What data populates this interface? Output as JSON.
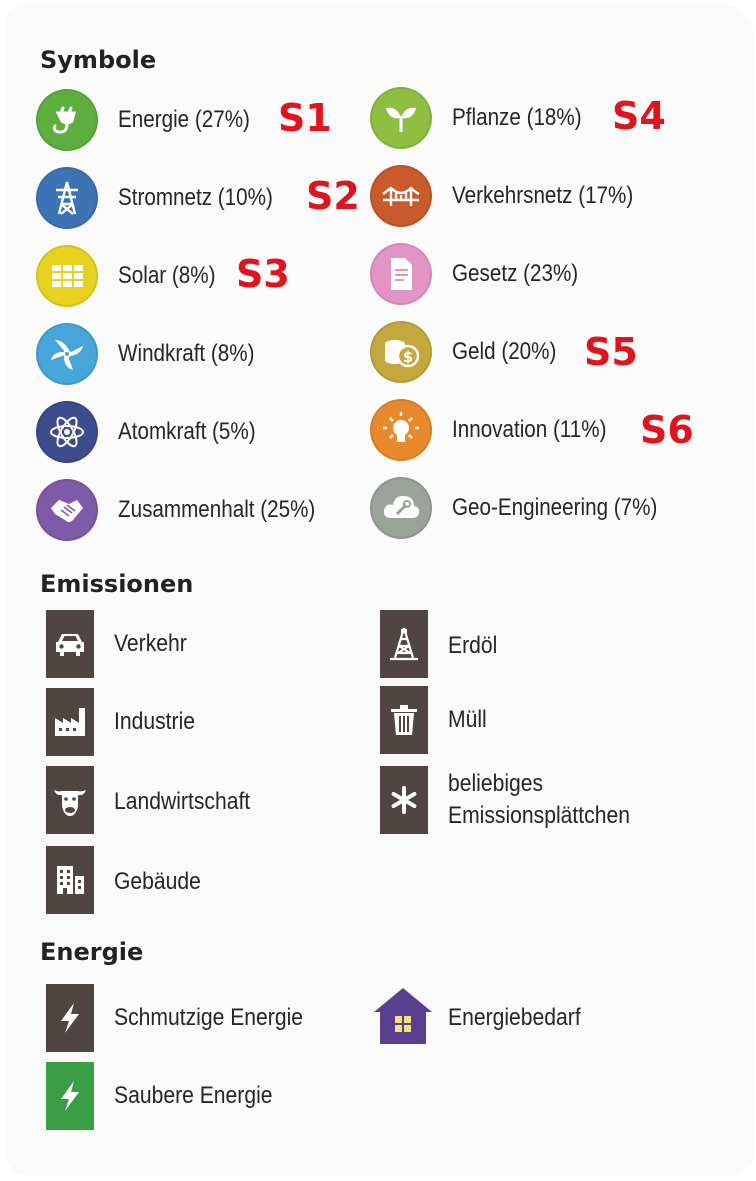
{
  "sections": {
    "symbols": "Symbole",
    "emissions": "Emissionen",
    "energy": "Energie"
  },
  "symbols_left": [
    {
      "label": "Energie (27%)",
      "icon": "plug-icon",
      "color": "#5dae3f",
      "tag": "S1"
    },
    {
      "label": "Stromnetz (10%)",
      "icon": "power-pylon-icon",
      "color": "#3d73b5",
      "tag": "S2"
    },
    {
      "label": "Solar (8%)",
      "icon": "solar-panel-icon",
      "color": "#e8d21e",
      "tag": "S3"
    },
    {
      "label": "Windkraft (8%)",
      "icon": "wind-turbine-icon",
      "color": "#46a5d9",
      "tag": ""
    },
    {
      "label": "Atomkraft (5%)",
      "icon": "atom-icon",
      "color": "#3c4c8c",
      "tag": ""
    },
    {
      "label": "Zusammenhalt (25%)",
      "icon": "handshake-icon",
      "color": "#7f5aa8",
      "tag": ""
    }
  ],
  "symbols_right": [
    {
      "label": "Pflanze (18%)",
      "icon": "sprout-icon",
      "color": "#8ebf43",
      "tag": "S4"
    },
    {
      "label": "Verkehrsnetz (17%)",
      "icon": "bridge-icon",
      "color": "#c95a2c",
      "tag": ""
    },
    {
      "label": "Gesetz (23%)",
      "icon": "document-icon",
      "color": "#e295c5",
      "tag": ""
    },
    {
      "label": "Geld (20%)",
      "icon": "coins-icon",
      "color": "#c2a83d",
      "tag": "S5"
    },
    {
      "label": "Innovation (11%)",
      "icon": "lightbulb-icon",
      "color": "#e8892d",
      "tag": "S6"
    },
    {
      "label": "Geo-Engineering (7%)",
      "icon": "cloud-wrench-icon",
      "color": "#9aa29a",
      "tag": ""
    }
  ],
  "emissions_left": [
    {
      "label": "Verkehr",
      "icon": "car-icon"
    },
    {
      "label": "Industrie",
      "icon": "factory-icon"
    },
    {
      "label": "Landwirtschaft",
      "icon": "cow-icon"
    },
    {
      "label": "Gebäude",
      "icon": "building-icon"
    }
  ],
  "emissions_right": [
    {
      "label": "Erdöl",
      "icon": "oil-derrick-icon"
    },
    {
      "label": "Müll",
      "icon": "trash-can-icon"
    },
    {
      "label": "beliebiges",
      "label2": "Emissionsplättchen",
      "icon": "asterisk-icon"
    }
  ],
  "energy_items": [
    {
      "label": "Schmutzige Energie",
      "icon": "lightning-icon",
      "color": "#504543"
    },
    {
      "label": "Saubere Energie",
      "icon": "lightning-icon",
      "color": "#3a9e45"
    },
    {
      "label": "Energiebedarf",
      "icon": "house-icon",
      "color": "#5a3f8e"
    }
  ]
}
